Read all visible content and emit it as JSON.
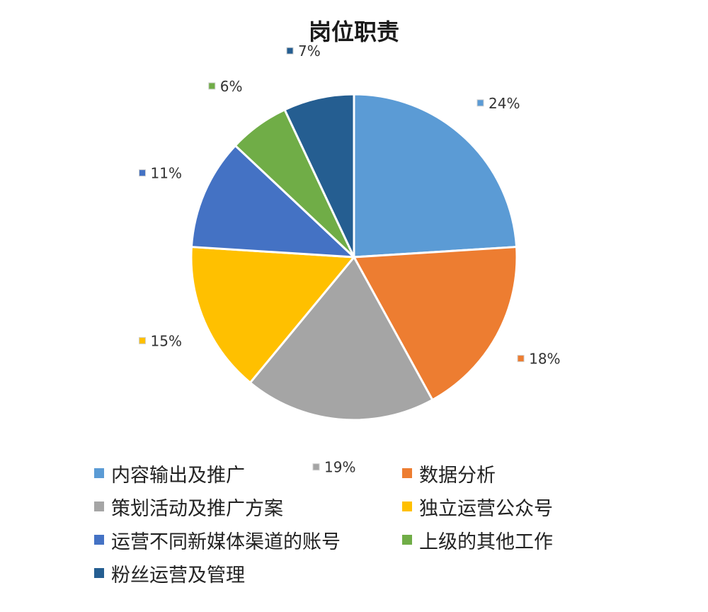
{
  "chart_data": {
    "type": "pie",
    "title": "岗位职责",
    "categories": [
      "内容输出及推广",
      "数据分析",
      "策划活动及推广方案",
      "独立运营公众号",
      "运营不同新媒体渠道的账号",
      "上级的其他工作",
      "粉丝运营及管理"
    ],
    "values": [
      24,
      18,
      19,
      15,
      11,
      6,
      7
    ],
    "labels": [
      "24%",
      "18%",
      "19%",
      "15%",
      "11%",
      "6%",
      "7%"
    ],
    "colors": [
      "#5B9BD5",
      "#ED7D31",
      "#A5A5A5",
      "#FFC000",
      "#4472C4",
      "#70AD47",
      "#255E91"
    ],
    "start_angle": "12 o'clock",
    "direction": "clockwise",
    "legend_position": "bottom"
  }
}
